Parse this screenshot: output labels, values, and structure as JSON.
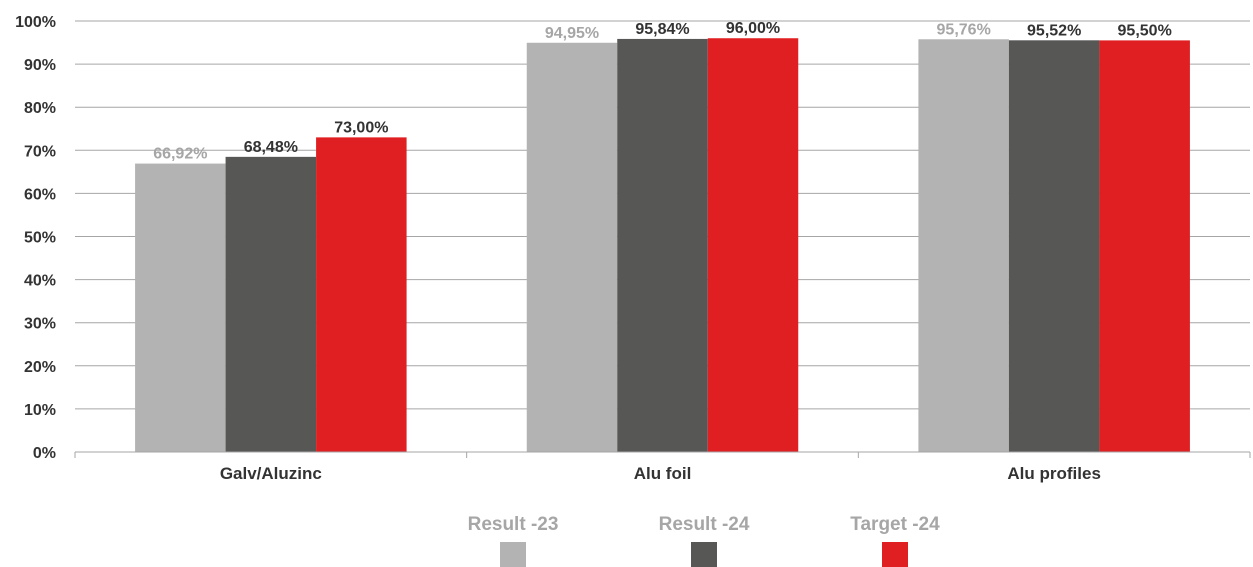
{
  "chart_data": {
    "type": "bar",
    "categories": [
      "Galv/Aluzinc",
      "Alu foil",
      "Alu profiles"
    ],
    "series": [
      {
        "name": "Result -23",
        "color": "#b3b3b3",
        "label_color": "#a6a6a6",
        "values": [
          66.92,
          94.95,
          95.76
        ],
        "labels": [
          "66,92%",
          "94,95%",
          "95,76%"
        ]
      },
      {
        "name": "Result -24",
        "color": "#575756",
        "label_color": "#333333",
        "values": [
          68.48,
          95.84,
          95.52
        ],
        "labels": [
          "68,48%",
          "95,84%",
          "95,52%"
        ]
      },
      {
        "name": "Target -24",
        "color": "#e01f22",
        "label_color": "#333333",
        "values": [
          73.0,
          96.0,
          95.5
        ],
        "labels": [
          "73,00%",
          "96,00%",
          "95,50%"
        ]
      }
    ],
    "ylim": [
      0,
      100
    ],
    "yticks": [
      0,
      10,
      20,
      30,
      40,
      50,
      60,
      70,
      80,
      90,
      100
    ],
    "ytick_labels": [
      "0%",
      "10%",
      "20%",
      "30%",
      "40%",
      "50%",
      "60%",
      "70%",
      "80%",
      "90%",
      "100%"
    ],
    "grid": true,
    "legend_position": "bottom"
  }
}
